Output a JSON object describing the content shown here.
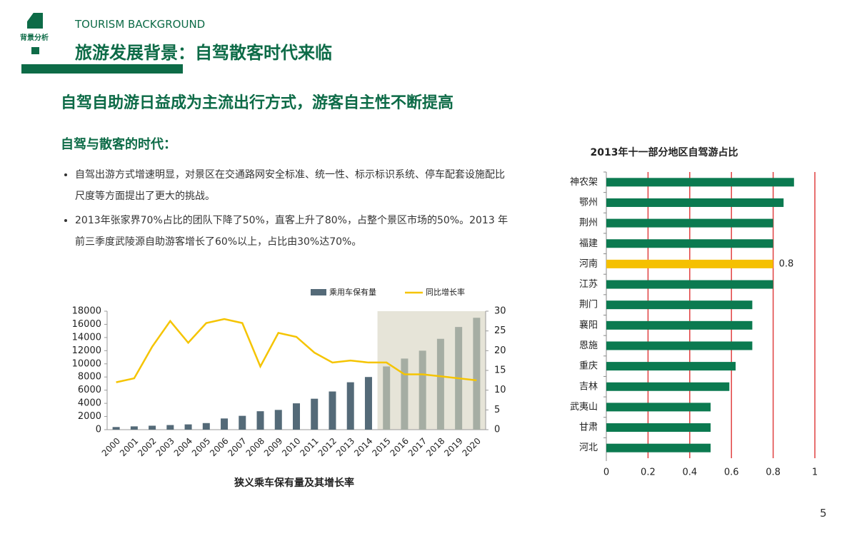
{
  "header": {
    "badge": "背景分析",
    "english_title": "TOURISM BACKGROUND",
    "title": "旅游发展背景：自驾散客时代来临"
  },
  "subtitle": "自驾自助游日益成为主流出行方式，游客自主性不断提高",
  "section": {
    "heading": "自驾与散客的时代：",
    "bullets": [
      "自驾出游方式增速明显，对景区在交通路网安全标准、统一性、标示标识系统、停车配套设施配比尺度等方面提出了更大的挑战。",
      "2013年张家界70%占比的团队下降了50%，直客上升了80%，占整个景区市场的50%。2013 年前三季度武陵源自助游客增长了60%以上，占比由30%达70%。"
    ]
  },
  "page_number": "5",
  "chart_data": [
    {
      "type": "bar-line",
      "title": "狭义乘车保有量及其增长率",
      "categories": [
        "2000",
        "2001",
        "2002",
        "2003",
        "2004",
        "2005",
        "2006",
        "2007",
        "2008",
        "2009",
        "2010",
        "2011",
        "2012",
        "2013",
        "2014",
        "2015",
        "2016",
        "2017",
        "2018",
        "2019",
        "2020"
      ],
      "series": [
        {
          "name": "乘用车保有量",
          "color": "#546a78",
          "type": "bar",
          "colors": [
            "#546a78",
            "#546a78",
            "#546a78",
            "#546a78",
            "#546a78",
            "#546a78",
            "#546a78",
            "#546a78",
            "#546a78",
            "#546a78",
            "#546a78",
            "#546a78",
            "#546a78",
            "#546a78",
            "#546a78",
            "#a5ada3",
            "#a5ada3",
            "#a5ada3",
            "#a5ada3",
            "#a5ada3",
            "#a5ada3"
          ],
          "values": [
            400,
            500,
            600,
            700,
            800,
            1000,
            1700,
            2100,
            2800,
            3000,
            4000,
            4700,
            5800,
            7200,
            8000,
            9600,
            10800,
            12000,
            13800,
            15600,
            17000
          ]
        },
        {
          "name": "同比增长率",
          "color": "#f5c400",
          "type": "line",
          "axis": "y2",
          "values": [
            12,
            13,
            21,
            27.5,
            22,
            27,
            28,
            27,
            16,
            24.5,
            23.5,
            19.5,
            17,
            17.5,
            17,
            17,
            14,
            14,
            13.5,
            13,
            12.5
          ]
        }
      ],
      "shade_color": "#e6e4d8",
      "ylim": [
        0,
        18000
      ],
      "yticks": [
        0,
        2000,
        4000,
        6000,
        8000,
        10000,
        12000,
        14000,
        16000,
        18000
      ],
      "y2lim": [
        0,
        30
      ],
      "y2ticks": [
        0,
        5,
        10,
        15,
        20,
        25,
        30
      ]
    },
    {
      "type": "hbar",
      "title": "2013年十一部分地区自驾游占比",
      "categories": [
        "神农架",
        "鄂州",
        "荆州",
        "福建",
        "河南",
        "江苏",
        "荆门",
        "襄阳",
        "恩施",
        "重庆",
        "吉林",
        "武夷山",
        "甘肃",
        "河北"
      ],
      "values": [
        0.9,
        0.85,
        0.8,
        0.8,
        0.8,
        0.8,
        0.7,
        0.7,
        0.7,
        0.62,
        0.59,
        0.5,
        0.5,
        0.5
      ],
      "color": "#0b7a50",
      "colors": [
        "#0b7a50",
        "#0b7a50",
        "#0b7a50",
        "#0b7a50",
        "#f5c000",
        "#0b7a50",
        "#0b7a50",
        "#0b7a50",
        "#0b7a50",
        "#0b7a50",
        "#0b7a50",
        "#0b7a50",
        "#0b7a50",
        "#0b7a50"
      ],
      "label_indices": [
        4
      ],
      "xlim": [
        0,
        1
      ],
      "xticks": [
        0,
        0.2,
        0.4,
        0.6,
        0.8,
        1
      ],
      "grid": true,
      "grid_color": "#e04040"
    }
  ]
}
